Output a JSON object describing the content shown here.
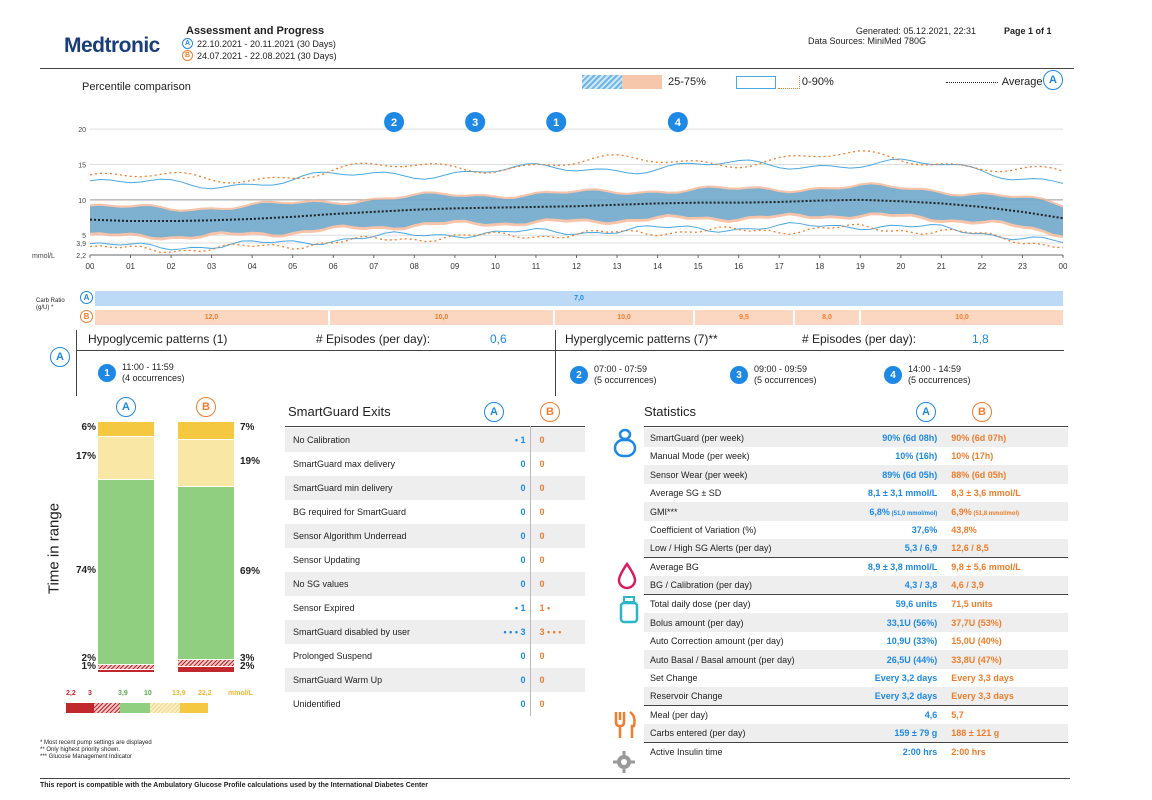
{
  "header": {
    "brand": "Medtronic",
    "title": "Assessment and Progress",
    "range_a": "22.10.2021 - 20.11.2021 (30 Days)",
    "range_b": "24.07.2021 - 22.08.2021 (30 Days)",
    "generated": "Generated: 05.12.2021, 22:31",
    "data_sources": "Data Sources: MiniMed 780G",
    "page": "Page 1 of 1",
    "a": "A",
    "b": "B"
  },
  "chart_data": {
    "type": "area",
    "title": "Percentile comparison",
    "legend": [
      "25-75%",
      "0-90%",
      "Average"
    ],
    "legend_placement": "top",
    "y_ticks": [
      "20",
      "15",
      "10",
      "5",
      "3,9",
      "2,2"
    ],
    "y_unit": "mmol/L",
    "x_ticks": [
      "00",
      "01",
      "02",
      "03",
      "04",
      "05",
      "06",
      "07",
      "08",
      "09",
      "10",
      "11",
      "12",
      "13",
      "14",
      "15",
      "16",
      "17",
      "18",
      "19",
      "20",
      "21",
      "22",
      "23",
      "00"
    ],
    "ylim": [
      2.2,
      22
    ],
    "markers": [
      "2",
      "3",
      "1",
      "4"
    ],
    "colors": {
      "a": "#4aa8e0",
      "b": "#f5b08c",
      "avg": "#222222"
    },
    "series": [
      {
        "name": "Average",
        "x": [
          0,
          1,
          2,
          3,
          4,
          5,
          6,
          7,
          8,
          9,
          10,
          11,
          12,
          13,
          14,
          15,
          16,
          17,
          18,
          19,
          20,
          21,
          22,
          23,
          24
        ],
        "values": [
          7.2,
          7.0,
          7.0,
          7.1,
          7.3,
          7.6,
          8.0,
          8.3,
          8.6,
          8.8,
          8.9,
          9.0,
          9.1,
          9.3,
          9.5,
          9.6,
          9.6,
          9.7,
          9.9,
          10.0,
          9.8,
          9.5,
          9.0,
          8.3,
          7.4
        ]
      }
    ]
  },
  "carb_ratio": {
    "label": "Carb Ratio (g/U) *",
    "a_value": "7,0",
    "b_values": [
      "12,0",
      "10,0",
      "10,0",
      "9,5",
      "8,0",
      "10,0"
    ]
  },
  "patterns": {
    "hypo_title": "Hypoglycemic patterns (1)",
    "hypo_episodes_label": "# Episodes (per day):",
    "hypo_episodes": "0,6",
    "hyper_title": "Hyperglycemic patterns (7)**",
    "hyper_episodes_label": "# Episodes (per day):",
    "hyper_episodes": "1,8",
    "items": [
      {
        "num": "1",
        "time": "11:00 - 11:59",
        "occ": "(4 occurrences)"
      },
      {
        "num": "2",
        "time": "07:00 - 07:59",
        "occ": "(5 occurrences)"
      },
      {
        "num": "3",
        "time": "09:00 - 09:59",
        "occ": "(5 occurrences)"
      },
      {
        "num": "4",
        "time": "14:00 - 14:59",
        "occ": "(5 occurrences)"
      }
    ]
  },
  "tir": {
    "axis_label": "Time in range",
    "a": {
      "very_high": 6,
      "high": 17,
      "in_range": 74,
      "low": 2,
      "very_low": 1
    },
    "b": {
      "very_high": 7,
      "high": 19,
      "in_range": 69,
      "low": 3,
      "very_low": 2
    },
    "a_labels": [
      "6%",
      "17%",
      "74%",
      "2%",
      "1%"
    ],
    "b_labels": [
      "7%",
      "19%",
      "69%",
      "3%",
      "2%"
    ],
    "thresholds": [
      "2,2",
      "3",
      "3,9",
      "10",
      "13,9",
      "22,2"
    ],
    "unit": "mmol/L",
    "colors": {
      "very_high": "#f5c842",
      "high": "#f9e7a6",
      "in_range": "#8fcf7f",
      "low": "#e8a7a7",
      "very_low": "#c0282d"
    }
  },
  "exits": {
    "title": "SmartGuard Exits",
    "rows": [
      {
        "label": "No Calibration",
        "a": "1",
        "a_dots": "•",
        "b": "0",
        "b_dots": ""
      },
      {
        "label": "SmartGuard max delivery",
        "a": "0",
        "a_dots": "",
        "b": "0",
        "b_dots": ""
      },
      {
        "label": "SmartGuard min delivery",
        "a": "0",
        "a_dots": "",
        "b": "0",
        "b_dots": ""
      },
      {
        "label": "BG required for SmartGuard",
        "a": "0",
        "a_dots": "",
        "b": "0",
        "b_dots": ""
      },
      {
        "label": "Sensor Algorithm Underread",
        "a": "0",
        "a_dots": "",
        "b": "0",
        "b_dots": ""
      },
      {
        "label": "Sensor Updating",
        "a": "0",
        "a_dots": "",
        "b": "0",
        "b_dots": ""
      },
      {
        "label": "No SG values",
        "a": "0",
        "a_dots": "",
        "b": "0",
        "b_dots": ""
      },
      {
        "label": "Sensor Expired",
        "a": "1",
        "a_dots": "•",
        "b": "1",
        "b_dots": "•"
      },
      {
        "label": "SmartGuard disabled by user",
        "a": "3",
        "a_dots": "• • •",
        "b": "3",
        "b_dots": "• • •"
      },
      {
        "label": "Prolonged Suspend",
        "a": "0",
        "a_dots": "",
        "b": "0",
        "b_dots": ""
      },
      {
        "label": "SmartGuard Warm Up",
        "a": "0",
        "a_dots": "",
        "b": "0",
        "b_dots": ""
      },
      {
        "label": "Unidentified",
        "a": "0",
        "a_dots": "",
        "b": "0",
        "b_dots": ""
      }
    ]
  },
  "stats": {
    "title": "Statistics",
    "rows": [
      {
        "label": "SmartGuard (per week)",
        "a": "90% (6d 08h)",
        "b": "90% (6d 07h)"
      },
      {
        "label": "Manual Mode (per week)",
        "a": "10% (16h)",
        "b": "10% (17h)"
      },
      {
        "label": "Sensor Wear (per week)",
        "a": "89% (6d 05h)",
        "b": "88% (6d 05h)"
      },
      {
        "label": "Average SG ± SD",
        "a": "8,1 ± 3,1 mmol/L",
        "b": "8,3 ± 3,6 mmol/L"
      },
      {
        "label": "GMI***",
        "a": "6,8%",
        "a_sub": "(51,0 mmol/mol)",
        "b": "6,9%",
        "b_sub": "(51,8 mmol/mol)"
      },
      {
        "label": "Coefficient of Variation (%)",
        "a": "37,6%",
        "b": "43,8%"
      },
      {
        "label": "Low / High SG Alerts (per day)",
        "a": "5,3 / 6,9",
        "b": "12,6 / 8,5"
      },
      {
        "label": "Average BG",
        "a": "8,9 ± 3,8 mmol/L",
        "b": "9,8 ± 5,6 mmol/L"
      },
      {
        "label": "BG / Calibration (per day)",
        "a": "4,3 / 3,8",
        "b": "4,6 / 3,9"
      },
      {
        "label": "Total daily dose (per day)",
        "a": "59,6 units",
        "b": "71,5 units"
      },
      {
        "label": "Bolus amount (per day)",
        "a": "33,1U (56%)",
        "b": "37,7U (53%)"
      },
      {
        "label": "Auto Correction amount (per day)",
        "a": "10,9U (33%)",
        "b": "15,0U (40%)"
      },
      {
        "label": "Auto Basal / Basal amount (per day)",
        "a": "26,5U (44%)",
        "b": "33,8U (47%)"
      },
      {
        "label": "Set Change",
        "a": "Every 3,2 days",
        "b": "Every 3,3 days"
      },
      {
        "label": "Reservoir Change",
        "a": "Every 3,2 days",
        "b": "Every 3,3 days"
      },
      {
        "label": "Meal (per day)",
        "a": "4,6",
        "b": "5,7"
      },
      {
        "label": "Carbs entered (per day)",
        "a": "159 ± 79 g",
        "b": "188 ± 121 g"
      },
      {
        "label": "Active Insulin time",
        "a": "2:00 hrs",
        "b": "2:00 hrs"
      }
    ]
  },
  "footnotes": {
    "f1": "* Most recent pump settings are displayed",
    "f2": "** Only highest priority shown.",
    "f3": "*** Glucose Management Indicator",
    "footer": "This report is compatible with the Ambulatory Glucose Profile calculations used by the International Diabetes Center"
  }
}
